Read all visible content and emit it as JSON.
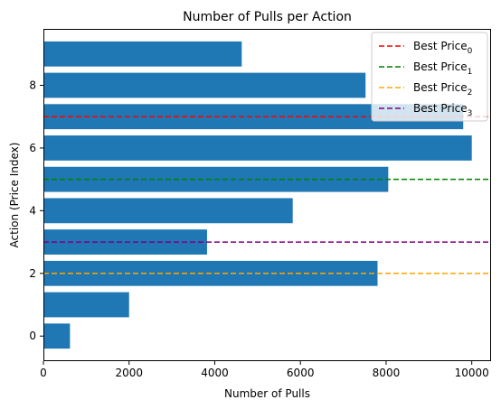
{
  "chart_data": {
    "type": "bar",
    "orientation": "horizontal",
    "title": "Number of Pulls per Action",
    "xlabel": "Number of Pulls",
    "ylabel": "Action (Price Index)",
    "xlim": [
      0,
      10450
    ],
    "ylim": [
      -0.8,
      9.8
    ],
    "x_ticks": [
      0,
      2000,
      4000,
      6000,
      8000,
      10000
    ],
    "x_tick_labels": [
      "0",
      "2000",
      "4000",
      "6000",
      "8000",
      "10000"
    ],
    "y_ticks": [
      0,
      2,
      4,
      6,
      8
    ],
    "y_tick_labels": [
      "0",
      "2",
      "4",
      "6",
      "8"
    ],
    "bar_color": "#1f77b4",
    "categories": [
      0,
      1,
      2,
      3,
      4,
      5,
      6,
      7,
      8,
      9
    ],
    "values": [
      620,
      2000,
      7800,
      3820,
      5820,
      8050,
      10000,
      9800,
      7520,
      4630
    ],
    "reference_lines": [
      {
        "label_base": "Best Price",
        "label_sub": "0",
        "y": 7,
        "color": "#ff0000"
      },
      {
        "label_base": "Best Price",
        "label_sub": "1",
        "y": 5,
        "color": "#008000"
      },
      {
        "label_base": "Best Price",
        "label_sub": "2",
        "y": 2,
        "color": "#ffa500"
      },
      {
        "label_base": "Best Price",
        "label_sub": "3",
        "y": 3,
        "color": "#800080"
      }
    ],
    "legend_position": "top-right",
    "grid": false
  }
}
